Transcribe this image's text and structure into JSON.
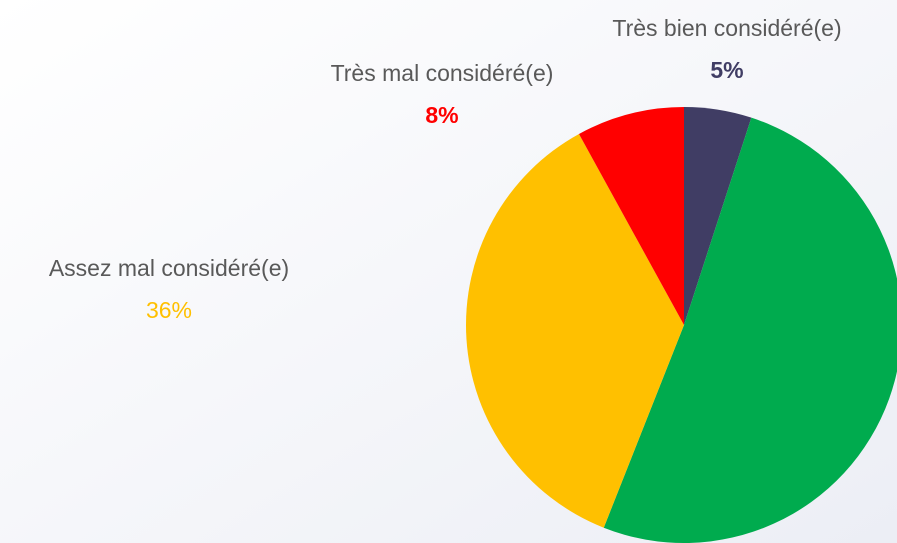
{
  "chart_data": {
    "type": "pie",
    "categories": [
      "Très bien considéré(e)",
      null,
      "Assez mal considéré(e)",
      "Très mal considéré(e)"
    ],
    "values": [
      5,
      51,
      36,
      8
    ],
    "value_labels": [
      "5%",
      null,
      "36%",
      "8%"
    ],
    "colors": [
      "#403d64",
      "#00ab4e",
      "#ffc000",
      "#ff0000"
    ]
  }
}
